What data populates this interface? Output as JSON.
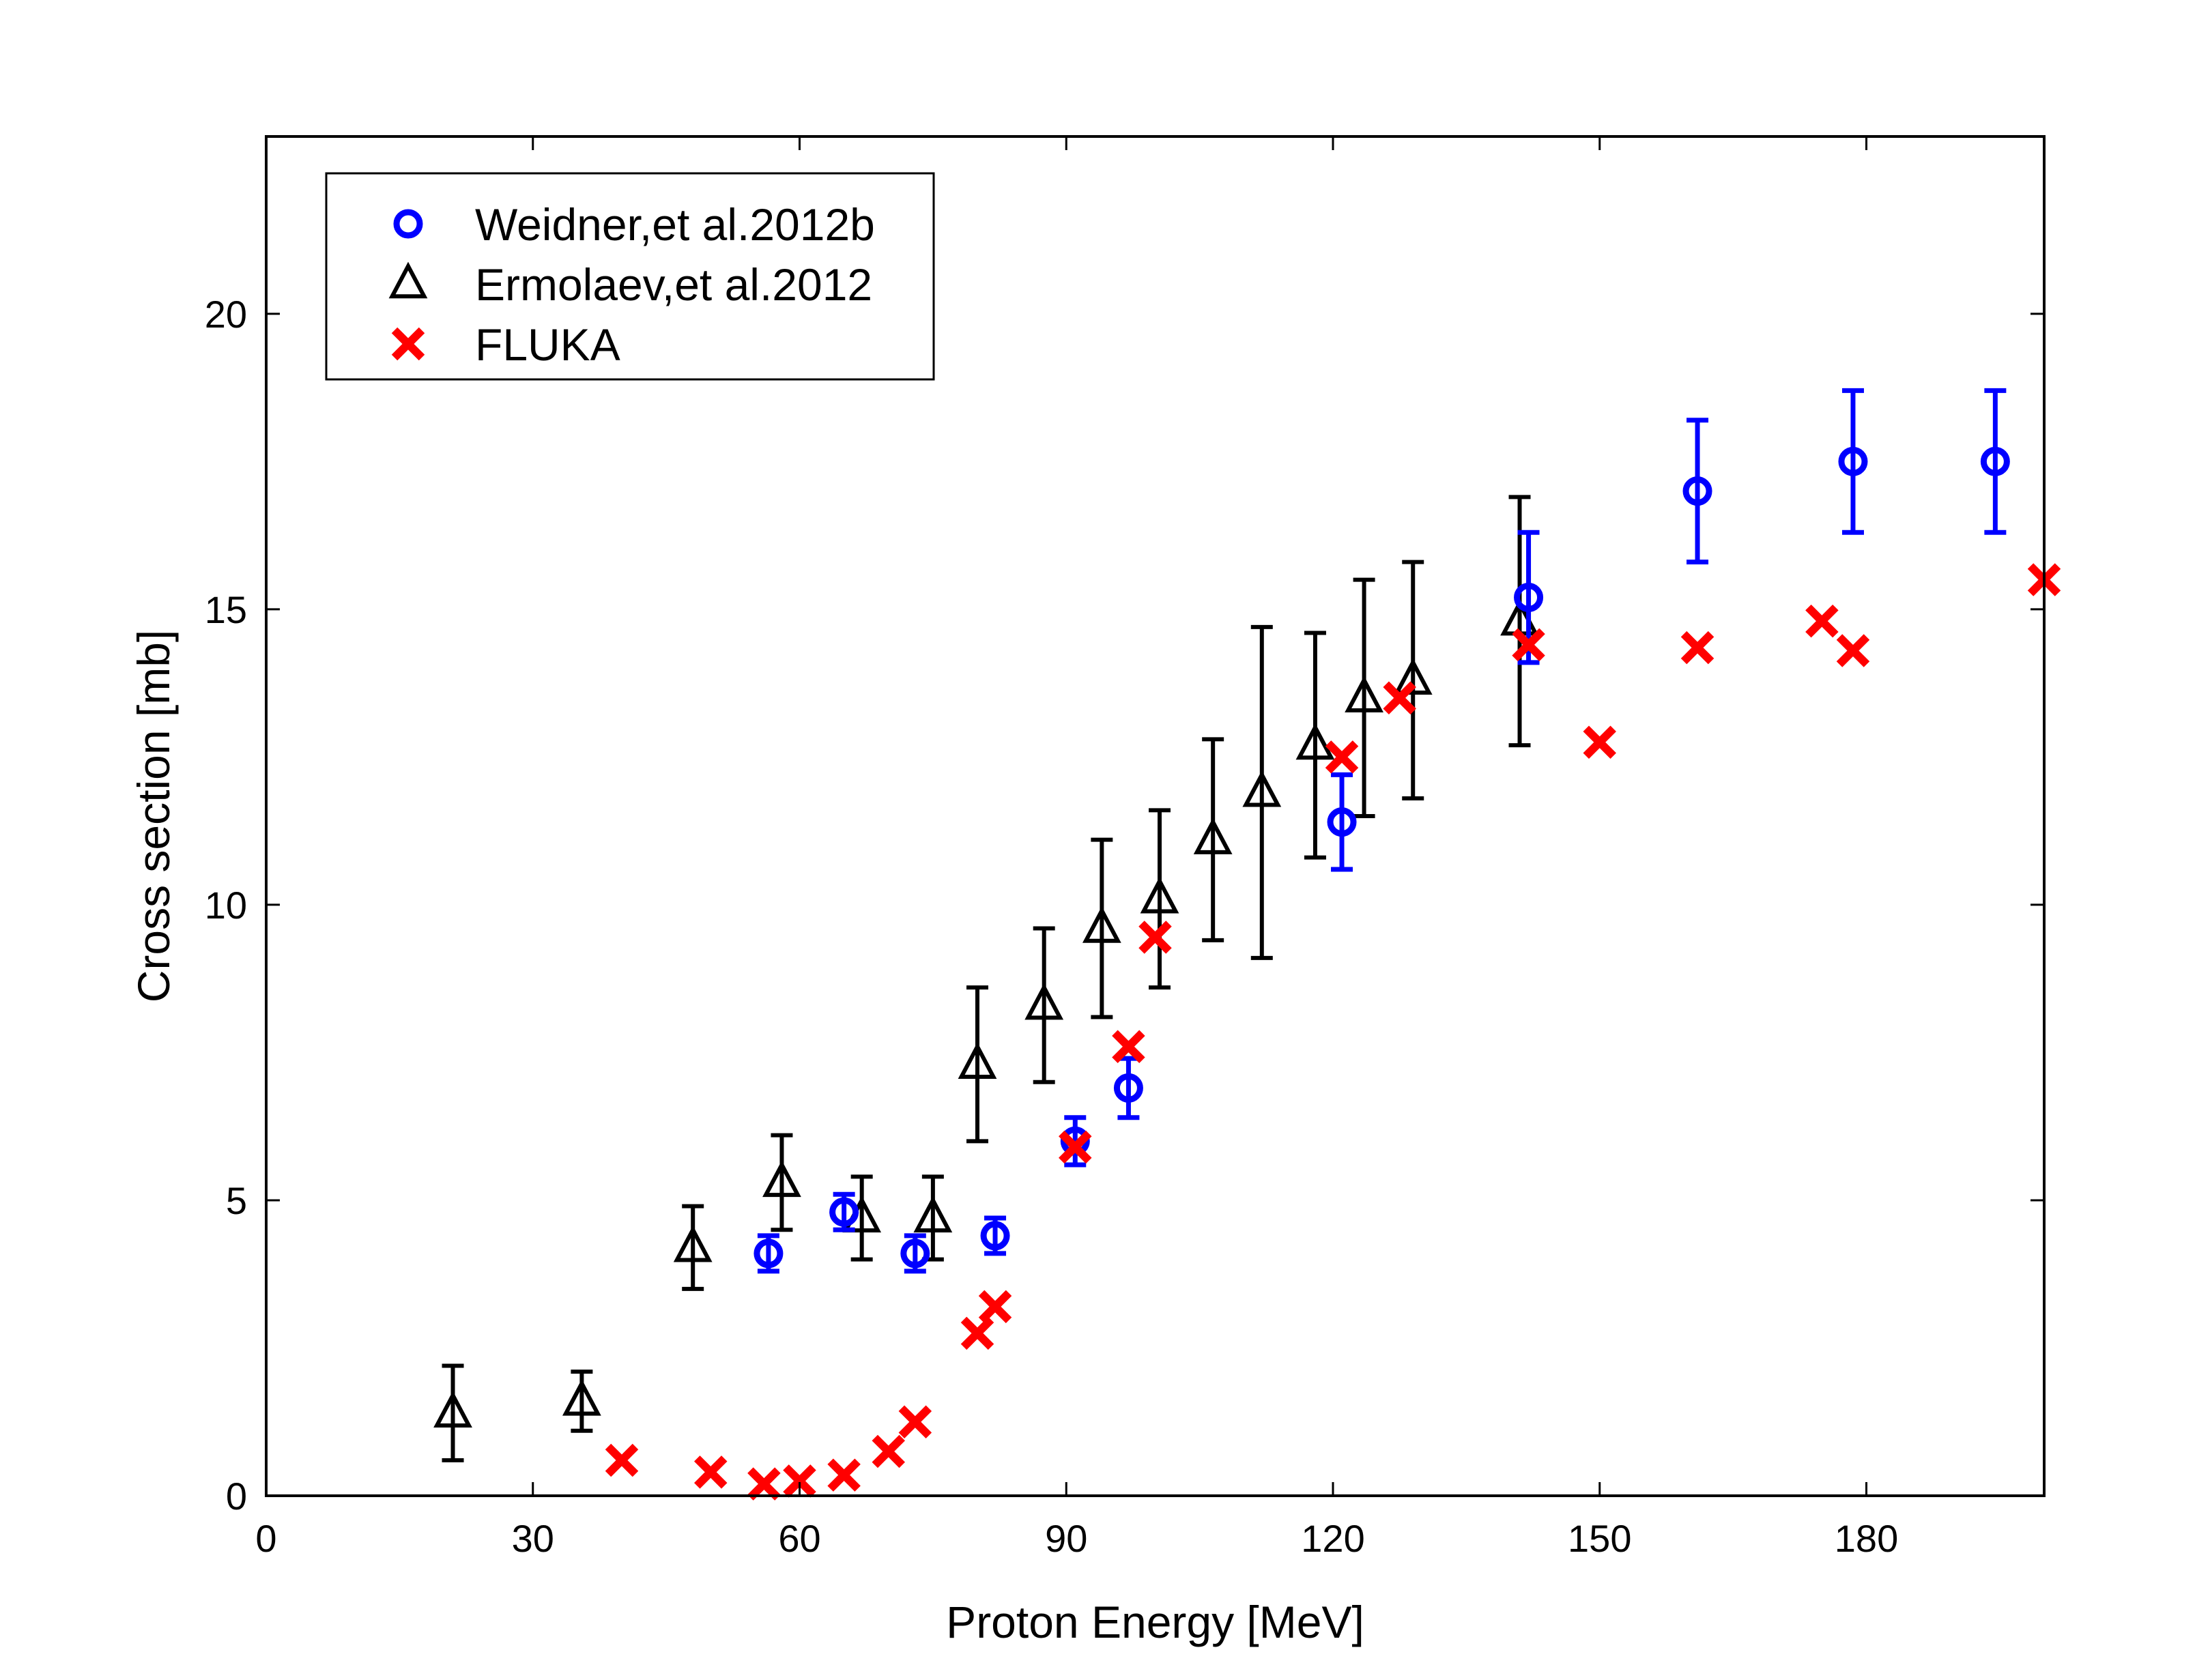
{
  "chart_data": {
    "type": "scatter",
    "xlabel": "Proton Energy [MeV]",
    "ylabel": "Cross section [mb]",
    "xlim": [
      0,
      200
    ],
    "ylim": [
      0,
      23
    ],
    "x_ticks": [
      0,
      30,
      60,
      90,
      120,
      150,
      180
    ],
    "y_ticks": [
      0,
      5,
      10,
      15,
      20
    ],
    "x_tick_labels": [
      "0",
      "30",
      "60",
      "90",
      "120",
      "150",
      "180"
    ],
    "y_tick_labels": [
      "0",
      "5",
      "10",
      "15",
      "20"
    ],
    "grid": false,
    "legend_position": "top-left",
    "series": [
      {
        "name": "Weidner,et al.2012b",
        "marker": "circle",
        "color": "#0000ff",
        "x": [
          56.5,
          65,
          73,
          82,
          91,
          97,
          121,
          142,
          161,
          178.5,
          194.5
        ],
        "y": [
          4.1,
          4.8,
          4.1,
          4.4,
          6.0,
          6.9,
          11.4,
          15.2,
          17.0,
          17.5,
          17.5
        ],
        "yerr": [
          0.3,
          0.3,
          0.3,
          0.3,
          0.4,
          0.5,
          0.8,
          1.1,
          1.2,
          1.2,
          1.2
        ]
      },
      {
        "name": "Ermolaev,et al.2012",
        "marker": "triangle",
        "color": "#000000",
        "x": [
          21,
          35.5,
          48,
          58,
          67,
          75,
          80,
          87.5,
          94,
          100.5,
          106.5,
          112,
          118,
          123.5,
          129,
          141
        ],
        "y": [
          1.4,
          1.6,
          4.2,
          5.3,
          4.7,
          4.7,
          7.3,
          8.3,
          9.6,
          10.1,
          11.1,
          11.9,
          12.7,
          13.5,
          13.8,
          14.8
        ],
        "yerr": [
          0.8,
          0.5,
          0.7,
          0.8,
          0.7,
          0.7,
          1.3,
          1.3,
          1.5,
          1.5,
          1.7,
          2.8,
          1.9,
          2.0,
          2.0,
          2.1
        ]
      },
      {
        "name": "FLUKA",
        "marker": "x",
        "color": "#ff0000",
        "x": [
          40,
          50,
          56,
          60,
          65,
          70,
          73,
          80,
          82,
          91,
          97,
          100,
          121,
          127.5,
          142,
          150,
          161,
          175,
          178.5,
          200
        ],
        "y": [
          0.6,
          0.4,
          0.2,
          0.25,
          0.35,
          0.75,
          1.25,
          2.75,
          3.2,
          5.9,
          7.6,
          9.45,
          12.5,
          13.5,
          14.4,
          12.75,
          14.35,
          14.8,
          14.3,
          15.5
        ]
      }
    ]
  }
}
